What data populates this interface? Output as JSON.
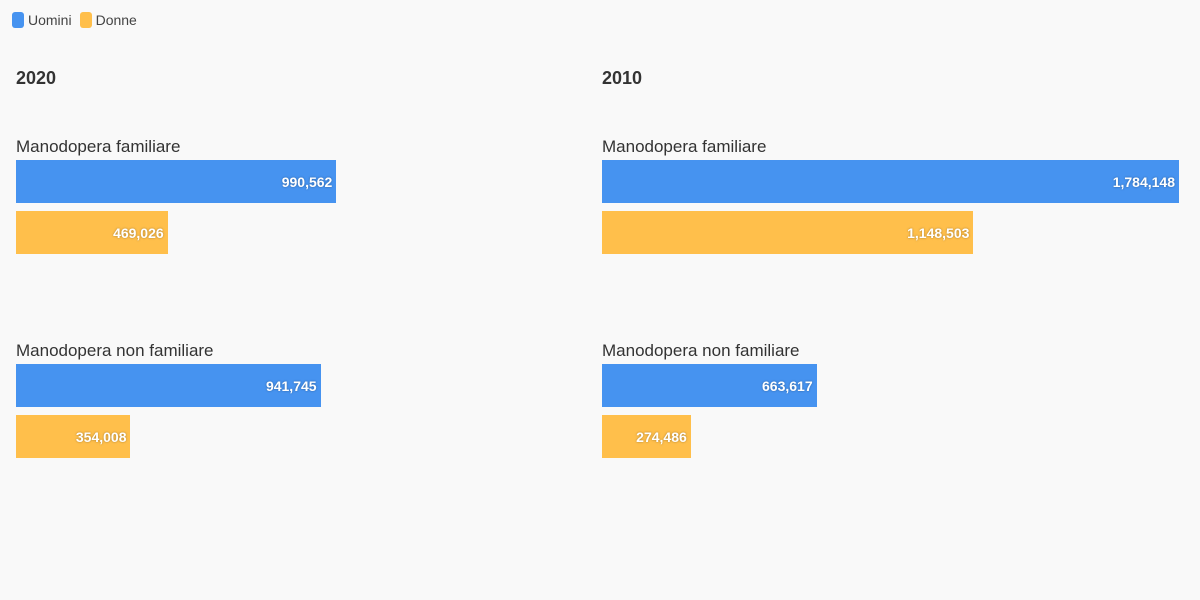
{
  "legend": {
    "items": [
      {
        "label": "Uomini",
        "color": "#4693F0"
      },
      {
        "label": "Donne",
        "color": "#FFBF4B"
      }
    ]
  },
  "chart_data": {
    "type": "bar",
    "orientation": "horizontal",
    "legend_placement": "top-left",
    "categories": [
      "Manodopera familiare",
      "Manodopera non familiare"
    ],
    "panels": [
      {
        "title": "2020",
        "series": [
          {
            "name": "Uomini",
            "color": "#4693F0",
            "values": [
              990562,
              941745
            ],
            "labels": [
              "990,562",
              "941,745"
            ]
          },
          {
            "name": "Donne",
            "color": "#FFBF4B",
            "values": [
              469026,
              354008
            ],
            "labels": [
              "469,026",
              "354,008"
            ]
          }
        ]
      },
      {
        "title": "2010",
        "series": [
          {
            "name": "Uomini",
            "color": "#4693F0",
            "values": [
              1784148,
              663617
            ],
            "labels": [
              "1,784,148",
              "663,617"
            ]
          },
          {
            "name": "Donne",
            "color": "#FFBF4B",
            "values": [
              1148503,
              274486
            ],
            "labels": [
              "1,148,503",
              "274,486"
            ]
          }
        ]
      }
    ]
  }
}
